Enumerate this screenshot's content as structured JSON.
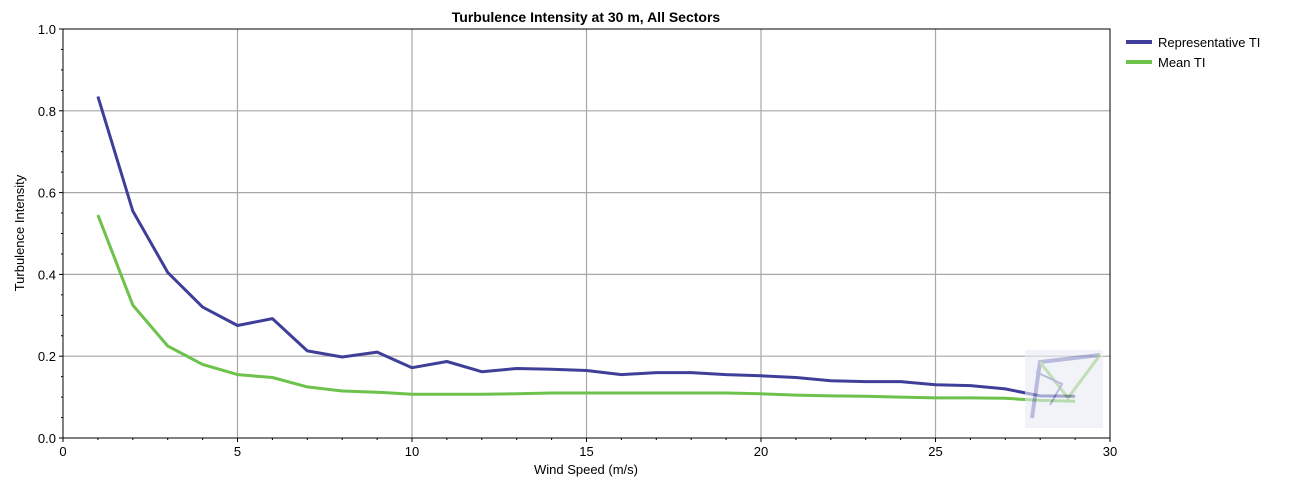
{
  "chart_data": {
    "type": "line",
    "title": "Turbulence Intensity at 30 m, All Sectors",
    "xlabel": "Wind Speed (m/s)",
    "ylabel": "Turbulence Intensity",
    "xlim": [
      0,
      30
    ],
    "ylim": [
      0,
      1.0
    ],
    "xticks": [
      "0",
      "5",
      "10",
      "15",
      "20",
      "25",
      "30"
    ],
    "yticks": [
      "0.0",
      "0.2",
      "0.4",
      "0.6",
      "0.8",
      "1.0"
    ],
    "grid": true,
    "legend_position": "right",
    "series": [
      {
        "name": "Representative TI",
        "color": "#3f3f99",
        "x": [
          1,
          2,
          3,
          4,
          5,
          6,
          7,
          8,
          9,
          10,
          11,
          12,
          13,
          14,
          15,
          16,
          17,
          18,
          19,
          20,
          21,
          22,
          23,
          24,
          25,
          26,
          27,
          28,
          29
        ],
        "y": [
          0.835,
          0.555,
          0.405,
          0.32,
          0.275,
          0.292,
          0.213,
          0.198,
          0.21,
          0.172,
          0.187,
          0.162,
          0.17,
          0.168,
          0.165,
          0.155,
          0.16,
          0.16,
          0.155,
          0.152,
          0.148,
          0.14,
          0.138,
          0.138,
          0.13,
          0.128,
          0.12,
          0.103,
          0.102
        ]
      },
      {
        "name": "Mean TI",
        "color": "#6cc24a",
        "x": [
          1,
          2,
          3,
          4,
          5,
          6,
          7,
          8,
          9,
          10,
          11,
          12,
          13,
          14,
          15,
          16,
          17,
          18,
          19,
          20,
          21,
          22,
          23,
          24,
          25,
          26,
          27,
          28,
          29
        ],
        "y": [
          0.545,
          0.325,
          0.225,
          0.18,
          0.155,
          0.148,
          0.125,
          0.115,
          0.112,
          0.107,
          0.107,
          0.107,
          0.108,
          0.11,
          0.11,
          0.11,
          0.11,
          0.11,
          0.11,
          0.108,
          0.105,
          0.103,
          0.102,
          0.1,
          0.098,
          0.098,
          0.097,
          0.092,
          0.09
        ]
      }
    ]
  }
}
